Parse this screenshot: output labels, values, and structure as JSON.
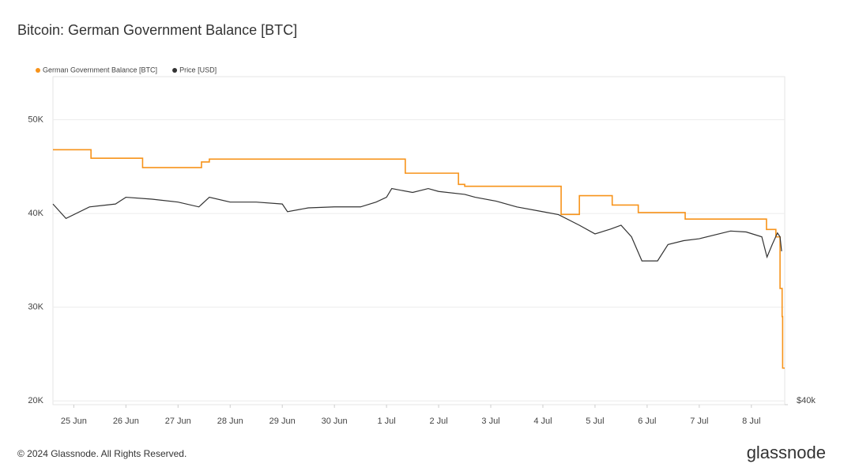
{
  "chart_data": {
    "type": "line",
    "title": "Bitcoin: German Government Balance [BTC]",
    "xlim": [
      -0.4,
      13.64
    ],
    "xticks": [
      {
        "value": 0,
        "label": "25 Jun"
      },
      {
        "value": 1,
        "label": "26 Jun"
      },
      {
        "value": 2,
        "label": "27 Jun"
      },
      {
        "value": 3,
        "label": "28 Jun"
      },
      {
        "value": 4,
        "label": "29 Jun"
      },
      {
        "value": 5,
        "label": "30 Jun"
      },
      {
        "value": 6,
        "label": "1 Jul"
      },
      {
        "value": 7,
        "label": "2 Jul"
      },
      {
        "value": 8,
        "label": "3 Jul"
      },
      {
        "value": 9,
        "label": "4 Jul"
      },
      {
        "value": 10,
        "label": "5 Jul"
      },
      {
        "value": 11,
        "label": "6 Jul"
      },
      {
        "value": 12,
        "label": "7 Jul"
      },
      {
        "value": 13,
        "label": "8 Jul"
      }
    ],
    "ylim": [
      19600,
      54600
    ],
    "yticks": [
      {
        "value": 20000,
        "label": "20K"
      },
      {
        "value": 30000,
        "label": "30K"
      },
      {
        "value": 40000,
        "label": "40K"
      },
      {
        "value": 50000,
        "label": "50K"
      }
    ],
    "y2lim": [
      40000,
      74000
    ],
    "y2ticks": [
      {
        "value": 40000,
        "label": "$40k"
      }
    ],
    "grid": true,
    "legend": "top-left",
    "series": [
      {
        "name": "German Government Balance [BTC]",
        "color": "#f7931a",
        "step": true,
        "x": [
          -0.4,
          0.33,
          1.32,
          2.45,
          2.6,
          6.36,
          7.38,
          7.5,
          9.35,
          9.7,
          10.33,
          10.83,
          11.73,
          13.29,
          13.47,
          13.55,
          13.59,
          13.6
        ],
        "values": [
          46800,
          45900,
          44900,
          45500,
          45800,
          44300,
          43100,
          42900,
          39900,
          41900,
          40900,
          40100,
          39400,
          38300,
          37500,
          32000,
          29000,
          23500
        ]
      },
      {
        "name": "Price [USD]",
        "color": "#333333",
        "axis": "y2",
        "x": [
          -0.4,
          -0.15,
          0.3,
          0.8,
          1.0,
          1.5,
          2.0,
          2.4,
          2.6,
          3.0,
          3.5,
          4.0,
          4.1,
          4.5,
          5.0,
          5.5,
          5.8,
          6.0,
          6.1,
          6.5,
          6.8,
          7.0,
          7.5,
          7.7,
          8.1,
          8.5,
          9.0,
          9.3,
          9.7,
          10.0,
          10.3,
          10.5,
          10.7,
          10.9,
          11.2,
          11.4,
          11.7,
          12.0,
          12.6,
          12.9,
          13.2,
          13.3,
          13.4,
          13.5,
          13.55,
          13.58
        ],
        "values": [
          60800,
          59300,
          60500,
          60800,
          61500,
          61300,
          61000,
          60500,
          61500,
          61000,
          61000,
          60800,
          60000,
          60400,
          60500,
          60500,
          61000,
          61500,
          62400,
          62000,
          62400,
          62100,
          61800,
          61500,
          61100,
          60500,
          60000,
          59700,
          58600,
          57700,
          58200,
          58600,
          57400,
          54900,
          54900,
          56600,
          57000,
          57200,
          58000,
          57900,
          57400,
          55300,
          56600,
          57800,
          57400,
          55900
        ]
      }
    ]
  },
  "footer": {
    "copyright": "© 2024 Glassnode. All Rights Reserved.",
    "logo": "glassnode"
  }
}
